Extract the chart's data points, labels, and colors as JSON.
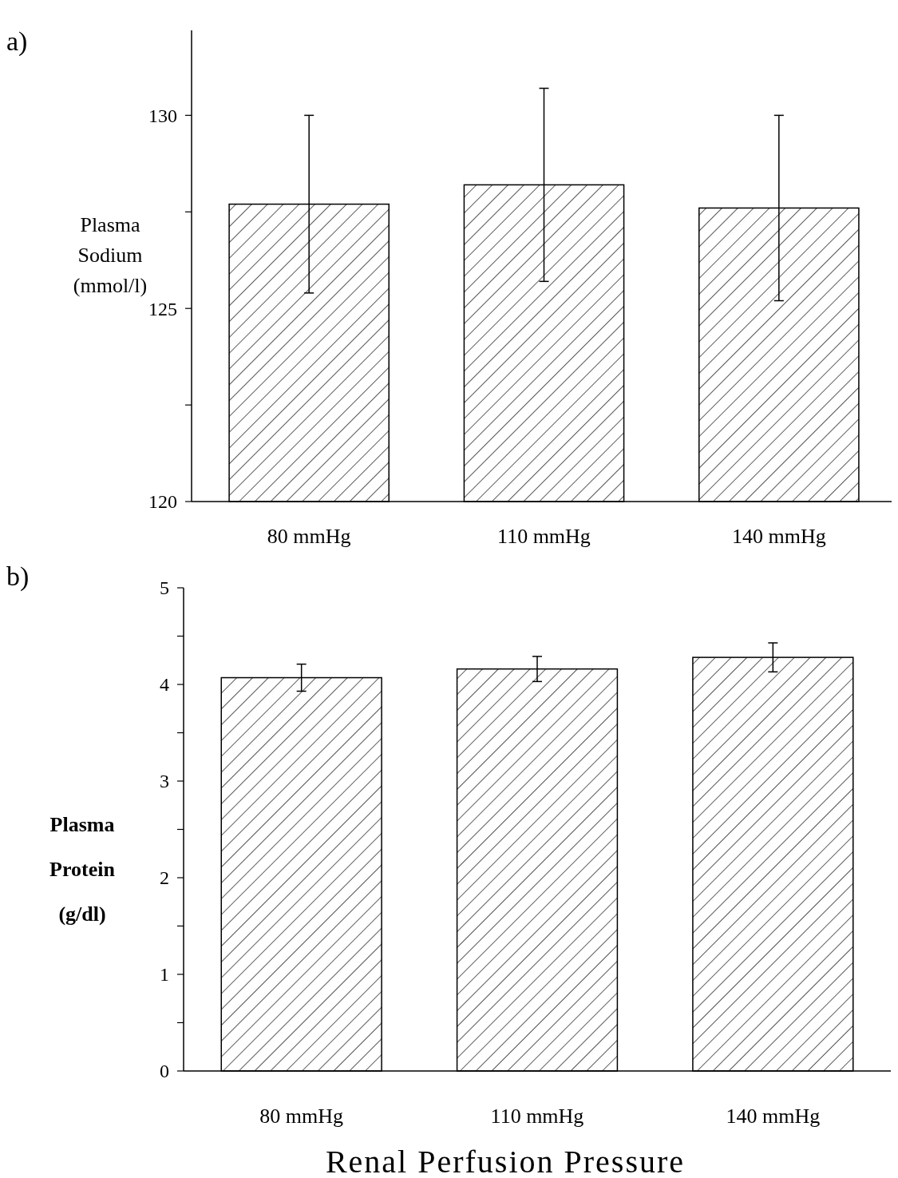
{
  "chart_data": [
    {
      "type": "bar",
      "title": "a)",
      "ylabel": "Plasma Sodium (mmol/l)",
      "categories": [
        "80 mmHg",
        "110 mmHg",
        "140 mmHg"
      ],
      "values": [
        127.7,
        128.2,
        127.6
      ],
      "errors": [
        2.3,
        2.5,
        2.4
      ],
      "color": "#000000",
      "ylim": [
        120,
        132.2
      ],
      "yticks": [
        120,
        {
          "value": 122.5,
          "label": null
        },
        125,
        {
          "value": 127.5,
          "label": null
        },
        130
      ],
      "grid": false
    },
    {
      "type": "bar",
      "title": "b)",
      "ylabel": "Plasma Protein (g/dl)",
      "xlabel": "Renal Perfusion Pressure",
      "categories": [
        "80 mmHg",
        "110 mmHg",
        "140 mmHg"
      ],
      "values": [
        4.07,
        4.16,
        4.28
      ],
      "errors": [
        0.14,
        0.13,
        0.15
      ],
      "color": "#000000",
      "ylim": [
        0,
        5
      ],
      "yticks": [
        0,
        {
          "value": 0.5,
          "label": null
        },
        1,
        {
          "value": 1.5,
          "label": null
        },
        2,
        {
          "value": 2.5,
          "label": null
        },
        3,
        {
          "value": 3.5,
          "label": null
        },
        4,
        {
          "value": 4.5,
          "label": null
        },
        5
      ],
      "grid": false
    }
  ]
}
